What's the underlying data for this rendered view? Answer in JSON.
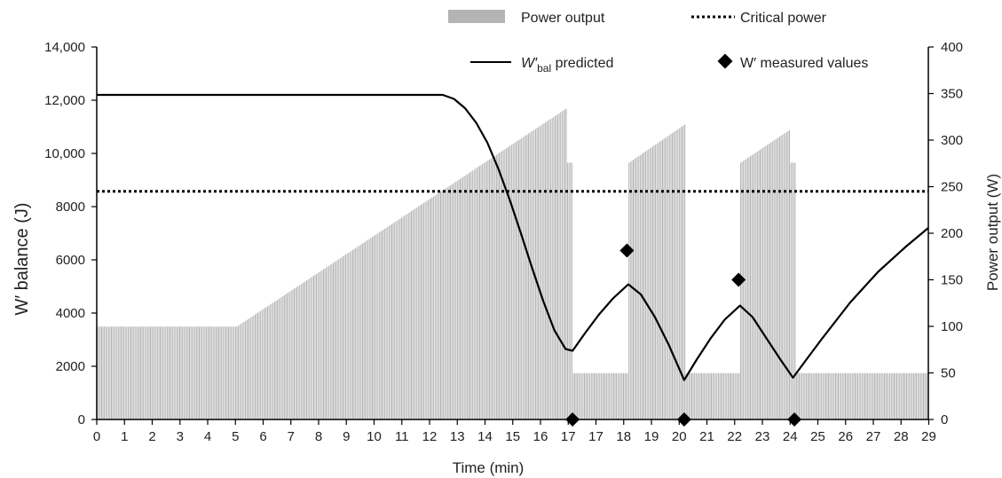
{
  "chart_data": {
    "type": "bar+line",
    "xlabel": "Time (min)",
    "ylabel_left": {
      "main": "W′ balance (J)"
    },
    "ylabel_right": "Power output (W)",
    "x_ticks": [
      "0",
      "1",
      "2",
      "3",
      "4",
      "5",
      "6",
      "7",
      "8",
      "9",
      "10",
      "11",
      "12",
      "13",
      "14",
      "15",
      "16",
      "17",
      "17",
      "18",
      "19",
      "20",
      "21",
      "22",
      "23",
      "24",
      "25",
      "26",
      "27",
      "28",
      "29"
    ],
    "x_tick_positions": [
      0,
      1,
      2,
      3,
      4,
      5,
      6,
      7,
      8,
      9,
      10,
      11,
      12,
      13,
      14,
      15,
      16,
      17,
      17,
      18,
      19,
      20,
      21,
      22,
      23,
      24,
      25,
      26,
      27,
      28,
      29
    ],
    "xlim": [
      0,
      29.8
    ],
    "ylim_left": [
      0,
      14000
    ],
    "ylim_right": [
      0,
      400
    ],
    "y_ticks_left": [
      "0",
      "2000",
      "4000",
      "6000",
      "8000",
      "10,000",
      "12,000",
      "14,000"
    ],
    "y_ticks_right": [
      "0",
      "50",
      "100",
      "150",
      "200",
      "250",
      "300",
      "350",
      "400"
    ],
    "legend": {
      "power_output": "Power output",
      "critical_power": "Critical power",
      "wbal_pre": "W′",
      "wbal_sub": "bal",
      "wbal_post": " predicted",
      "measured": "W′ measured values"
    },
    "colors": {
      "power_bars": "#b4b4b4",
      "power_bars_line": "#ffffff",
      "critical_power": "#000000",
      "wbal_line": "#000000",
      "measured": "#000000"
    },
    "critical_power_w": 245,
    "power_output_segments": [
      {
        "t0": 0,
        "t1": 5,
        "p0": 100,
        "p1": 100
      },
      {
        "t0": 5,
        "t1": 16.85,
        "p0": 100,
        "p1": 335
      },
      {
        "t0": 16.85,
        "t1": 17.05,
        "p0": 276,
        "p1": 276
      },
      {
        "t0": 17.05,
        "t1": 19.05,
        "p0": 50,
        "p1": 50
      },
      {
        "t0": 19.05,
        "t1": 21.1,
        "p0": 276,
        "p1": 318
      },
      {
        "t0": 21.1,
        "t1": 23.05,
        "p0": 50,
        "p1": 50
      },
      {
        "t0": 23.05,
        "t1": 24.85,
        "p0": 276,
        "p1": 312
      },
      {
        "t0": 24.85,
        "t1": 25.05,
        "p0": 276,
        "p1": 276
      },
      {
        "t0": 25.05,
        "t1": 29.8,
        "p0": 50,
        "p1": 50
      }
    ],
    "wbal_predicted": [
      [
        0,
        12200
      ],
      [
        12.4,
        12200
      ],
      [
        12.8,
        12050
      ],
      [
        13.2,
        11700
      ],
      [
        13.6,
        11150
      ],
      [
        14.0,
        10400
      ],
      [
        14.4,
        9400
      ],
      [
        14.8,
        8250
      ],
      [
        15.2,
        7000
      ],
      [
        15.6,
        5700
      ],
      [
        16.0,
        4450
      ],
      [
        16.4,
        3350
      ],
      [
        16.8,
        2650
      ],
      [
        17.05,
        2580
      ],
      [
        17.5,
        3250
      ],
      [
        18.0,
        3950
      ],
      [
        18.5,
        4550
      ],
      [
        19.05,
        5080
      ],
      [
        19.5,
        4700
      ],
      [
        20.0,
        3850
      ],
      [
        20.5,
        2800
      ],
      [
        21.05,
        1480
      ],
      [
        21.5,
        2250
      ],
      [
        22.0,
        3050
      ],
      [
        22.5,
        3750
      ],
      [
        23.05,
        4280
      ],
      [
        23.5,
        3850
      ],
      [
        24.0,
        3050
      ],
      [
        24.5,
        2250
      ],
      [
        24.95,
        1570
      ],
      [
        25.5,
        2350
      ],
      [
        26.0,
        3050
      ],
      [
        27.0,
        4400
      ],
      [
        28.0,
        5550
      ],
      [
        29.0,
        6500
      ],
      [
        29.8,
        7200
      ]
    ],
    "wprime_measured": [
      [
        17.05,
        0
      ],
      [
        19.0,
        6350
      ],
      [
        21.05,
        0
      ],
      [
        23.0,
        5250
      ],
      [
        25.0,
        0
      ]
    ]
  }
}
